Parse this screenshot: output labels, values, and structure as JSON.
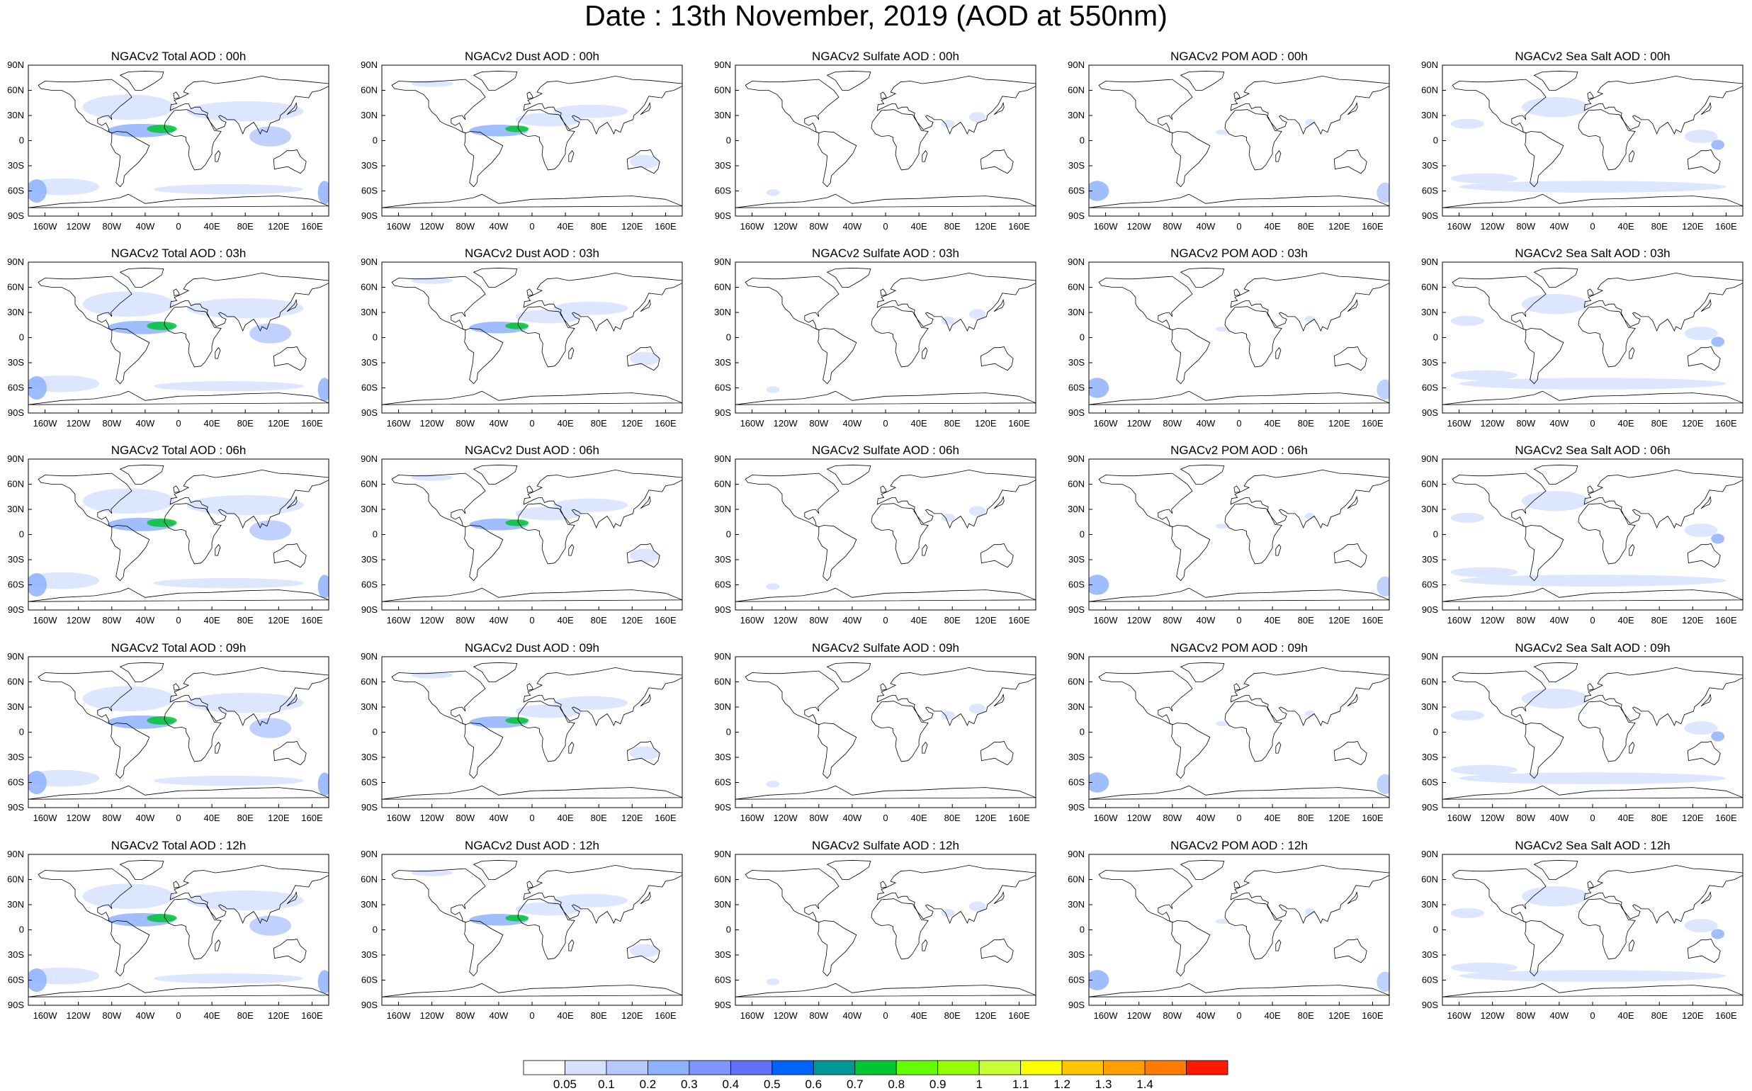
{
  "title": "Date : 13th November, 2019 (AOD at 550nm)",
  "panel_rows": [
    [
      "NGACv2 Total AOD : 00h",
      "NGACv2 Dust AOD : 00h",
      "NGACv2 Sulfate AOD : 00h",
      "NGACv2 POM AOD : 00h",
      "NGACv2 Sea Salt AOD : 00h"
    ],
    [
      "NGACv2 Total AOD : 03h",
      "NGACv2 Dust AOD : 03h",
      "NGACv2 Sulfate AOD : 03h",
      "NGACv2 POM AOD : 03h",
      "NGACv2 Sea Salt AOD : 03h"
    ],
    [
      "NGACv2 Total AOD : 06h",
      "NGACv2 Dust AOD : 06h",
      "NGACv2 Sulfate AOD : 06h",
      "NGACv2 POM AOD : 06h",
      "NGACv2 Sea Salt AOD : 06h"
    ],
    [
      "NGACv2 Total AOD : 09h",
      "NGACv2 Dust AOD : 09h",
      "NGACv2 Sulfate AOD : 09h",
      "NGACv2 POM AOD : 09h",
      "NGACv2 Sea Salt  AOD : 09h"
    ],
    [
      "NGACv2 Total AOD : 12h",
      "NGACv2 Dust AOD : 12h",
      "NGACv2 Sulfate AOD : 12h",
      "NGACv2 POM  AOD : 12h",
      "NGACv2 Sea Salt  AOD : 12h"
    ]
  ],
  "lat_labels": [
    "90N",
    "60N",
    "30N",
    "0",
    "30S",
    "60S",
    "90S"
  ],
  "lon_labels": [
    "160W",
    "120W",
    "80W",
    "40W",
    "0",
    "40E",
    "80E",
    "120E",
    "160E"
  ],
  "colorbar": {
    "labels": [
      "0.05",
      "0.1",
      "0.2",
      "0.3",
      "0.4",
      "0.5",
      "0.6",
      "0.7",
      "0.8",
      "0.9",
      "1",
      "1.1",
      "1.2",
      "1.3",
      "1.4"
    ],
    "colors": [
      "#ffffff",
      "#d6e2ff",
      "#b5c9ff",
      "#8eb2ff",
      "#7f96ff",
      "#6370f8",
      "#0063ff",
      "#009696",
      "#00c633",
      "#63ff00",
      "#96ff00",
      "#c6ff33",
      "#ffff00",
      "#ffc600",
      "#ffa000",
      "#ff7c00",
      "#ff1900"
    ]
  },
  "map_style": {
    "land_outline": "#000000",
    "aod_low": "#d6e2ff",
    "aod_mid": "#b5c9ff",
    "aod_high": "#8eb2ff",
    "aod_peak": "#00c633"
  }
}
